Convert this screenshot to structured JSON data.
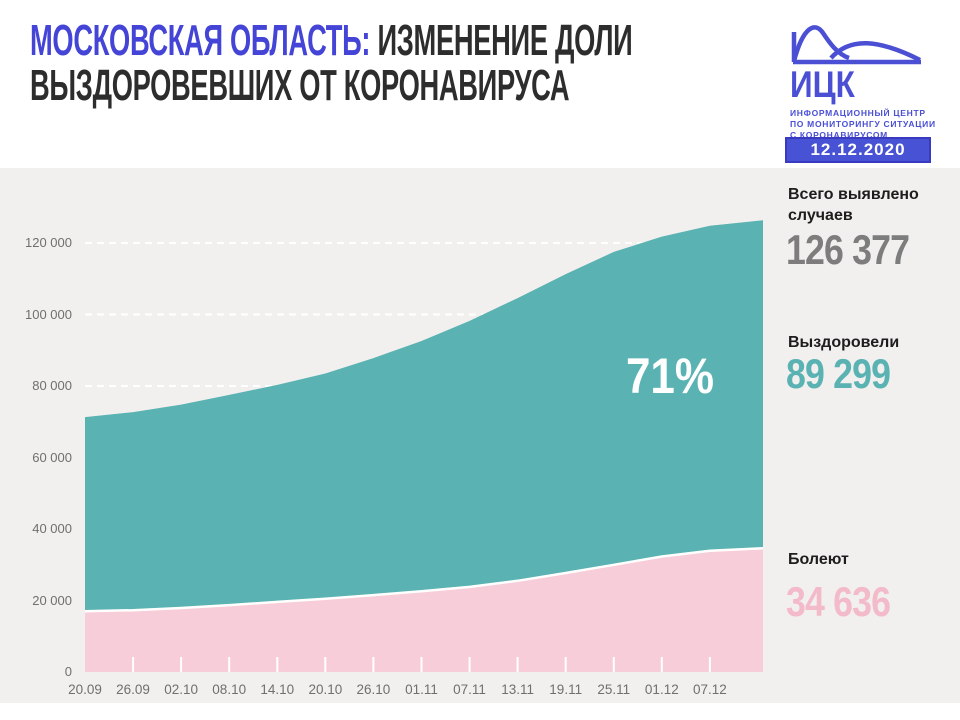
{
  "header": {
    "title_highlight": "МОСКОВСКАЯ ОБЛАСТЬ:",
    "title_rest_line1": " ИЗМЕНЕНИЕ ДОЛИ",
    "title_line2": "ВЫЗДОРОВЕВШИХ ОТ КОРОНАВИРУСА",
    "logo": {
      "abbr": "ИЦК",
      "subtitle_lines": [
        "ИНФОРМАЦИОННЫЙ ЦЕНТР",
        "ПО МОНИТОРИНГУ СИТУАЦИИ",
        "С КОРОНАВИРУСОМ"
      ],
      "icon": "flatten-the-curve-icon"
    },
    "date_badge": "12.12.2020"
  },
  "stats": {
    "total": {
      "label_line1": "Всего выявлено",
      "label_line2": "случаев",
      "value": "126 377"
    },
    "recovered": {
      "label": "Выздоровели",
      "value": "89 299"
    },
    "sick": {
      "label": "Болеют",
      "value": "34 636"
    }
  },
  "chart_data": {
    "type": "area",
    "title": "Изменение доли выздоровевших от коронавируса (Московская область)",
    "x": [
      "20.09",
      "26.09",
      "02.10",
      "08.10",
      "14.10",
      "20.10",
      "26.10",
      "01.11",
      "07.11",
      "13.11",
      "19.11",
      "25.11",
      "01.12",
      "07.12",
      "12.12"
    ],
    "xtick_labels": [
      "20.09",
      "26.09",
      "02.10",
      "08.10",
      "14.10",
      "20.10",
      "26.10",
      "01.11",
      "07.11",
      "13.11",
      "19.11",
      "25.11",
      "01.12",
      "07.12"
    ],
    "series": [
      {
        "name": "Всего выявлено случаев",
        "color": "#5ab2b2",
        "values": [
          71300,
          72700,
          74800,
          77500,
          80300,
          83500,
          87800,
          92600,
          98200,
          104600,
          111300,
          117500,
          121800,
          124800,
          126377
        ]
      },
      {
        "name": "Болеют",
        "color": "#f7cdd9",
        "values": [
          17000,
          17300,
          17900,
          18700,
          19600,
          20500,
          21500,
          22600,
          23800,
          25500,
          27700,
          30000,
          32300,
          33900,
          34636
        ]
      }
    ],
    "annotation": "71%",
    "yticks": [
      0,
      20000,
      40000,
      60000,
      80000,
      100000,
      120000
    ],
    "ytick_labels": [
      "0",
      "20 000",
      "40 000",
      "60 000",
      "80 000",
      "100 000",
      "120 000"
    ],
    "ylim": [
      0,
      126500
    ],
    "grid": "dashed-white-horizontal",
    "legend": "none"
  },
  "colors": {
    "title_highlight": "#4444d6",
    "title_text": "#2d2d2d",
    "logo_blue": "#4a4fd4",
    "badge_bg": "#4752d4",
    "badge_border": "#3a3ac0",
    "panel_bg": "#f1f0ee",
    "recovered_area": "#5ab2b2",
    "sick_area": "#f7cdd9",
    "total_value": "#7d7d7d",
    "recovered_value": "#5ab2b2",
    "sick_value": "#f3bac9",
    "axis_text": "#6f6f6f"
  }
}
